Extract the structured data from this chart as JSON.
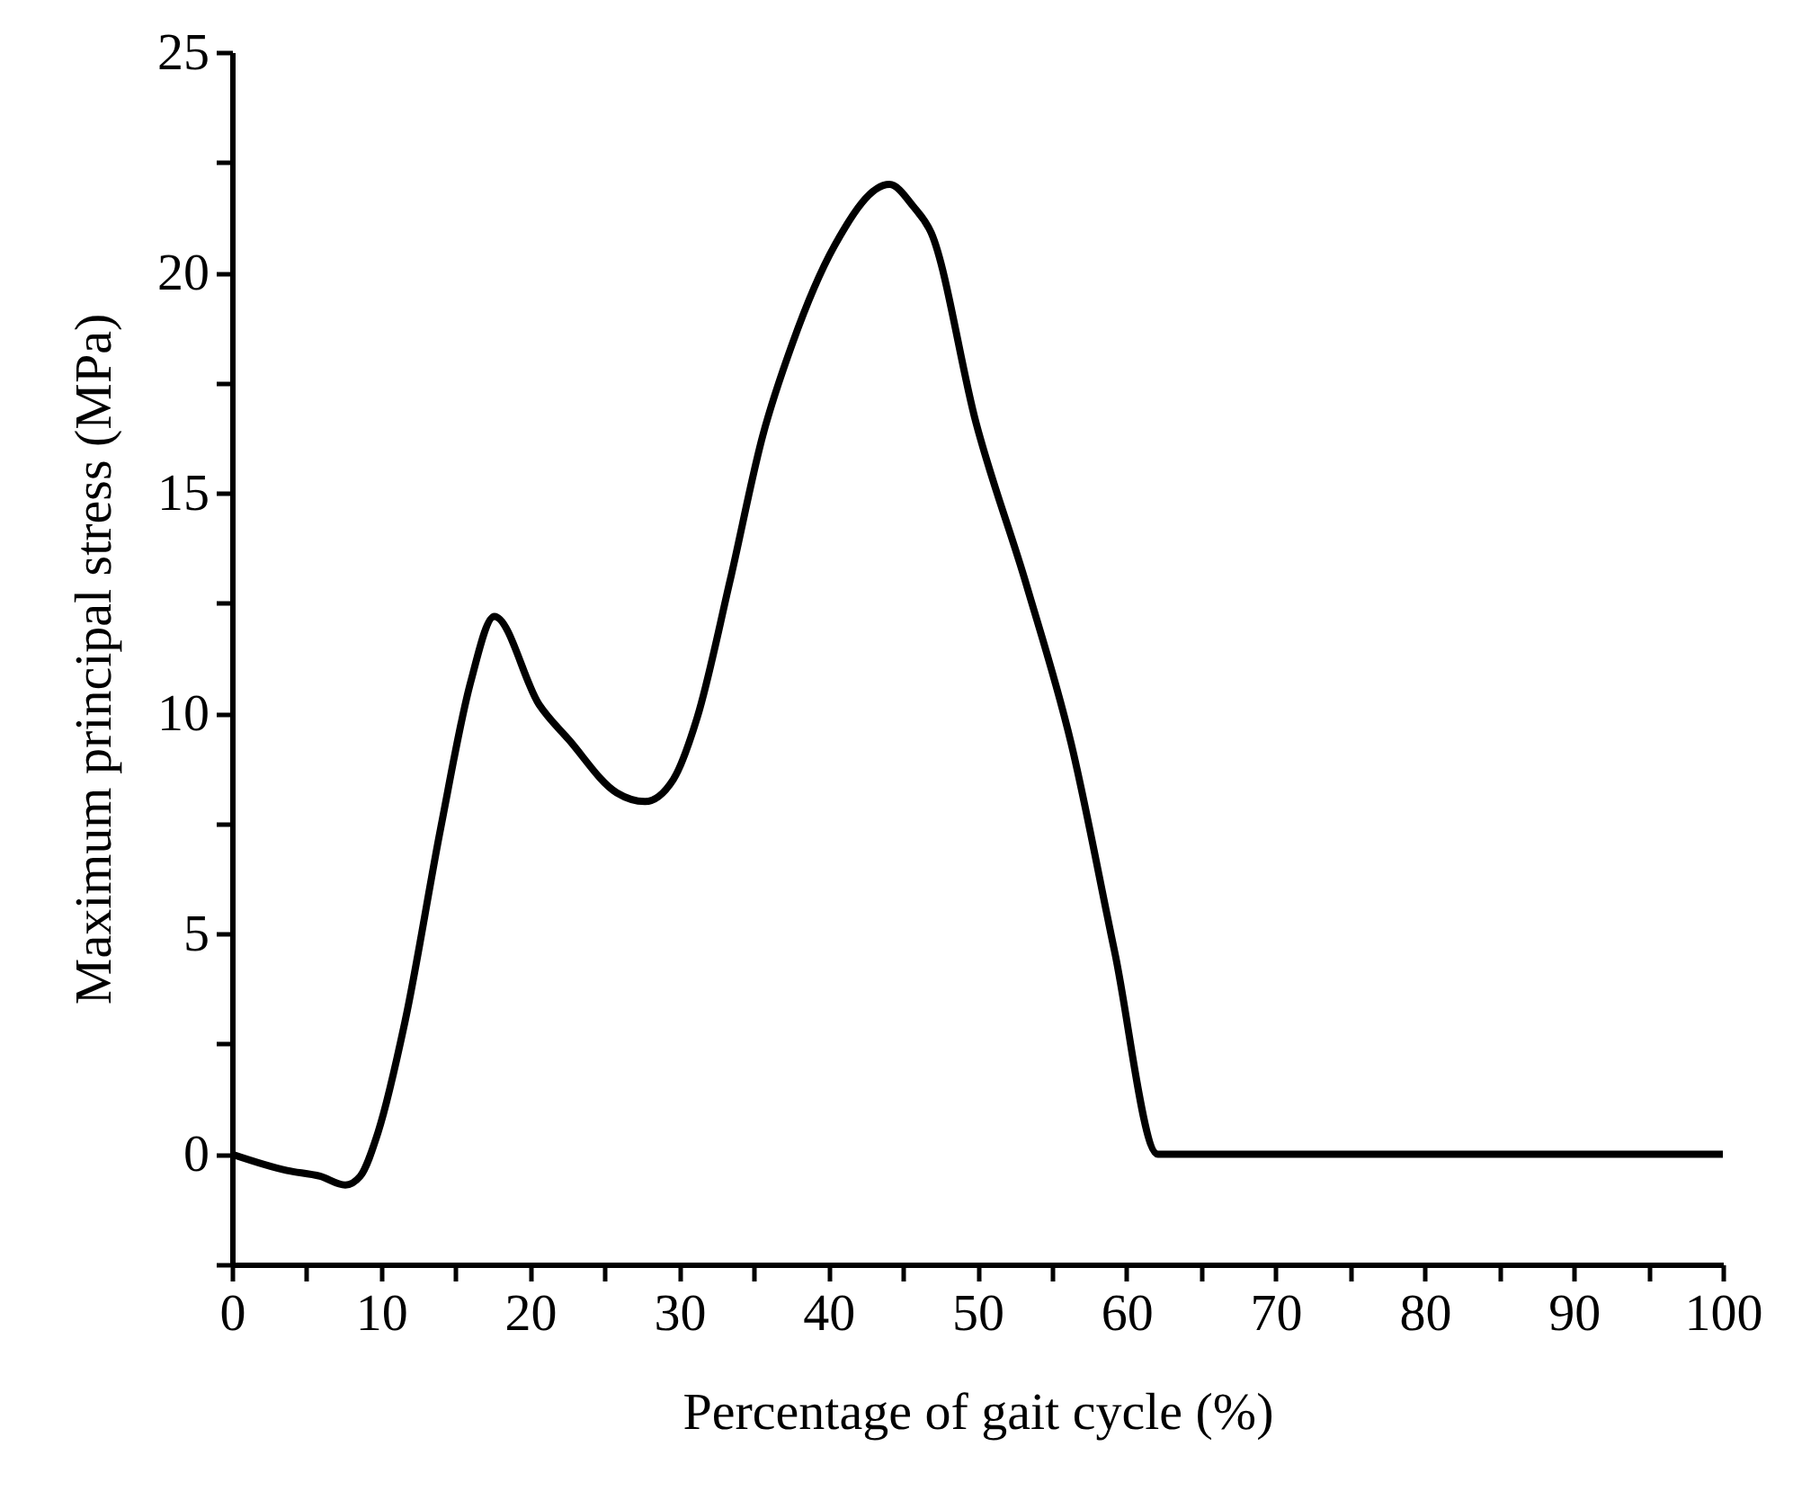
{
  "chart_data": {
    "type": "line",
    "xlabel": "Percentage of gait cycle (%)",
    "ylabel": "Maximum principal stress (MPa)",
    "x": [
      0,
      3.7,
      5.9,
      7.6,
      8.6,
      9.8,
      11.6,
      14,
      16,
      17.6,
      20.6,
      22.6,
      25.8,
      27.7,
      29.6,
      31.2,
      33.4,
      35.6,
      37.6,
      40.4,
      44.1,
      45.7,
      46.9,
      49.9,
      53.3,
      56.3,
      59.2,
      62.1,
      100
    ],
    "series": [
      {
        "color": "#000000",
        "values": [
          0,
          -0.37,
          -0.5,
          -0.7,
          -0.5,
          0.5,
          3,
          7.4,
          10.7,
          12.2,
          10.2,
          9.4,
          8.2,
          8.0,
          8.5,
          9.9,
          13.0,
          16.3,
          18.4,
          20.6,
          22.0,
          21.5,
          20.9,
          16.6,
          12.9,
          9.3,
          4.6,
          0,
          0
        ]
      }
    ],
    "xlim": [
      0,
      100
    ],
    "ylim": [
      -2.5,
      25
    ],
    "xticks": [
      0,
      {
        "value": 5,
        "label": null
      },
      10,
      {
        "value": 15,
        "label": null
      },
      20,
      {
        "value": 25,
        "label": null
      },
      30,
      {
        "value": 35,
        "label": null
      },
      40,
      {
        "value": 45,
        "label": null
      },
      50,
      {
        "value": 55,
        "label": null
      },
      60,
      {
        "value": 65,
        "label": null
      },
      70,
      {
        "value": 75,
        "label": null
      },
      80,
      {
        "value": 85,
        "label": null
      },
      90,
      {
        "value": 95,
        "label": null
      },
      100
    ],
    "yticks": [
      {
        "value": -2.5,
        "label": null
      },
      0,
      {
        "value": 2.5,
        "label": null
      },
      5,
      {
        "value": 7.5,
        "label": null
      },
      10,
      {
        "value": 12.5,
        "label": null
      },
      15,
      {
        "value": 17.5,
        "label": null
      },
      20,
      {
        "value": 22.5,
        "label": null
      },
      25
    ],
    "grid": false,
    "legend": false,
    "marker": "none",
    "line_style": "solid"
  }
}
